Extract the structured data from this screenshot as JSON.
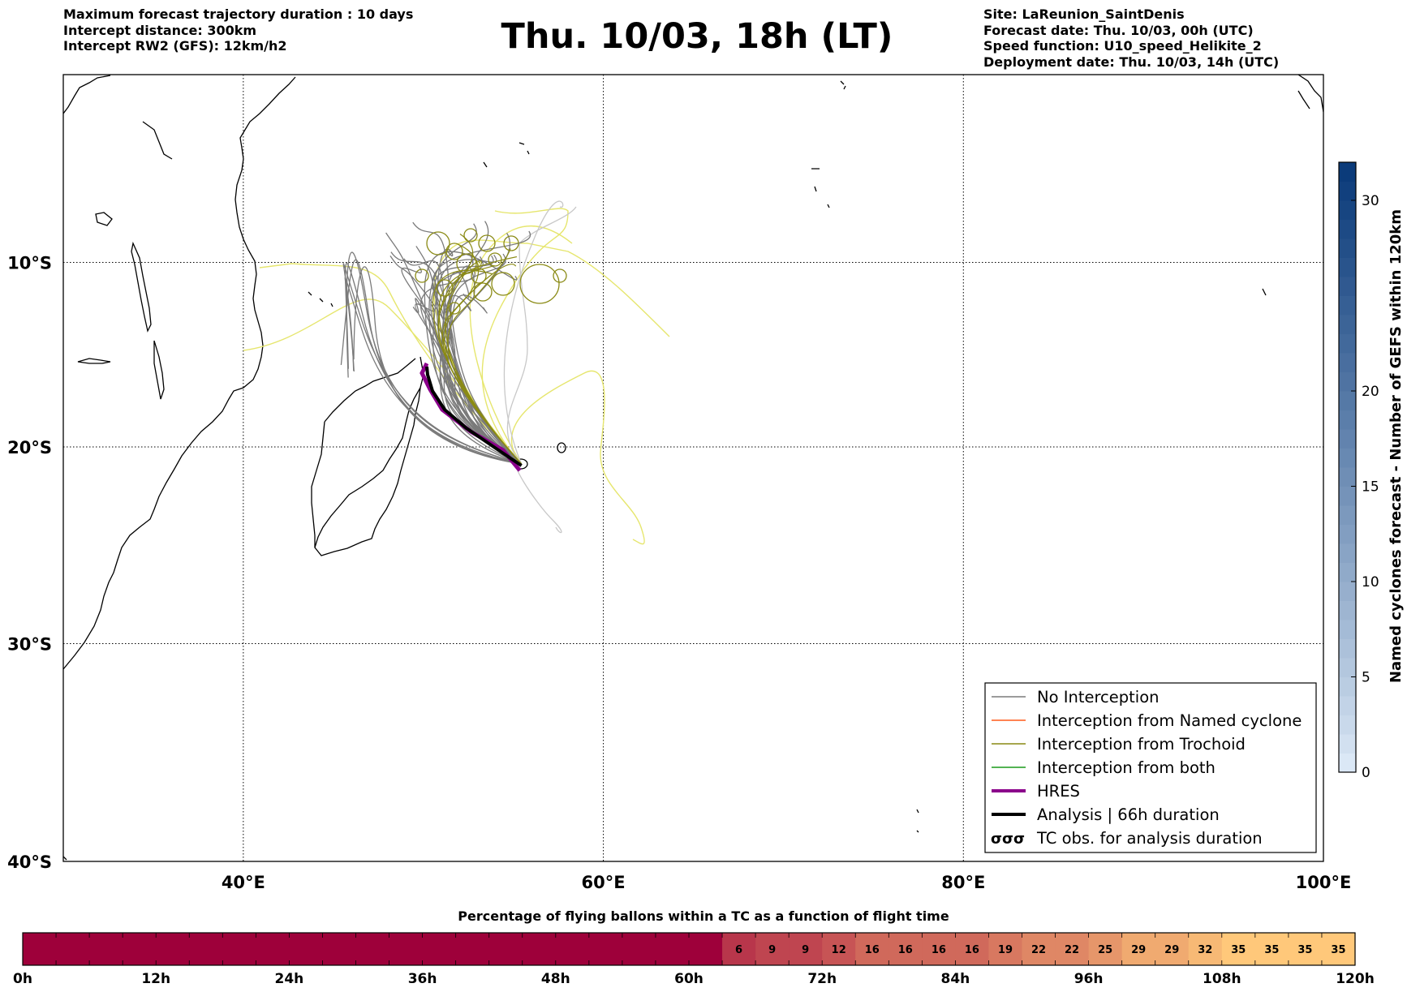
{
  "header": {
    "left": [
      "Maximum forecast trajectory duration : 10 days",
      "Intercept distance: 300km",
      "Intercept RW2 (GFS):  12km/h2"
    ],
    "title": "Thu. 10/03, 18h (LT)",
    "right": [
      "Site: LaReunion_SaintDenis",
      "Forecast date: Thu. 10/03, 00h (UTC)",
      "Speed function: U10_speed_Helikite_2",
      "Deployment date: Thu. 10/03, 14h (UTC)"
    ]
  },
  "map": {
    "lon_range": [
      30,
      100
    ],
    "lat_range": [
      -40,
      0.5
    ],
    "lon_ticks": [
      {
        "value": 40,
        "label": "40°E"
      },
      {
        "value": 60,
        "label": "60°E"
      },
      {
        "value": 80,
        "label": "80°E"
      },
      {
        "value": 100,
        "label": "100°E"
      }
    ],
    "lat_ticks": [
      {
        "value": -10,
        "label": "10°S"
      },
      {
        "value": -20,
        "label": "20°S"
      },
      {
        "value": -30,
        "label": "30°S"
      },
      {
        "value": -40,
        "label": "40°S"
      }
    ],
    "grid": "dotted",
    "launch_site": {
      "name": "LaReunion_SaintDenis",
      "lon": 55.45,
      "lat": -20.9
    }
  },
  "legend": {
    "placement": "lower-right",
    "items": [
      {
        "label": "No Interception",
        "color": "#7a7a7a",
        "style": "line-thin"
      },
      {
        "label": "Interception from Named cyclone",
        "color": "#ff5a1a",
        "style": "line-thin"
      },
      {
        "label": "Interception from Trochoid",
        "color": "#8a8a14",
        "style": "line-thin"
      },
      {
        "label": "Interception from both",
        "color": "#1a9a1a",
        "style": "line-thin"
      },
      {
        "label": "HRES",
        "color": "#8b008b",
        "style": "line-thick"
      },
      {
        "label": "Analysis | 66h duration",
        "color": "#000000",
        "style": "line-thick"
      },
      {
        "label": "TC obs. for analysis duration",
        "color": "#000000",
        "style": "tc-symbol"
      }
    ]
  },
  "colorbar_right": {
    "label": "Named cyclones forecast - Number of GEFS within 120km",
    "min": 0,
    "max": 32,
    "ticks": [
      0,
      5,
      10,
      15,
      20,
      30
    ],
    "colors": [
      "#dbe8f6",
      "#0b3b7a"
    ]
  },
  "chart_data": {
    "type": "heatmap",
    "title": "Percentage of flying ballons within a TC as a function of flight time",
    "x_ticks": [
      "0h",
      "12h",
      "24h",
      "36h",
      "48h",
      "60h",
      "72h",
      "84h",
      "96h",
      "108h",
      "120h"
    ],
    "x_range_hours": [
      0,
      120
    ],
    "bin_hours": 3,
    "values": [
      0,
      0,
      0,
      0,
      0,
      0,
      0,
      0,
      0,
      0,
      0,
      0,
      0,
      0,
      0,
      0,
      0,
      0,
      0,
      0,
      0,
      6,
      9,
      9,
      12,
      16,
      16,
      16,
      16,
      19,
      22,
      22,
      25,
      29,
      29,
      32,
      35,
      35,
      35,
      35
    ],
    "shown_labels_from_bin": 21,
    "colors": {
      "low": "#9e003a",
      "high": "#ffc97a"
    }
  }
}
